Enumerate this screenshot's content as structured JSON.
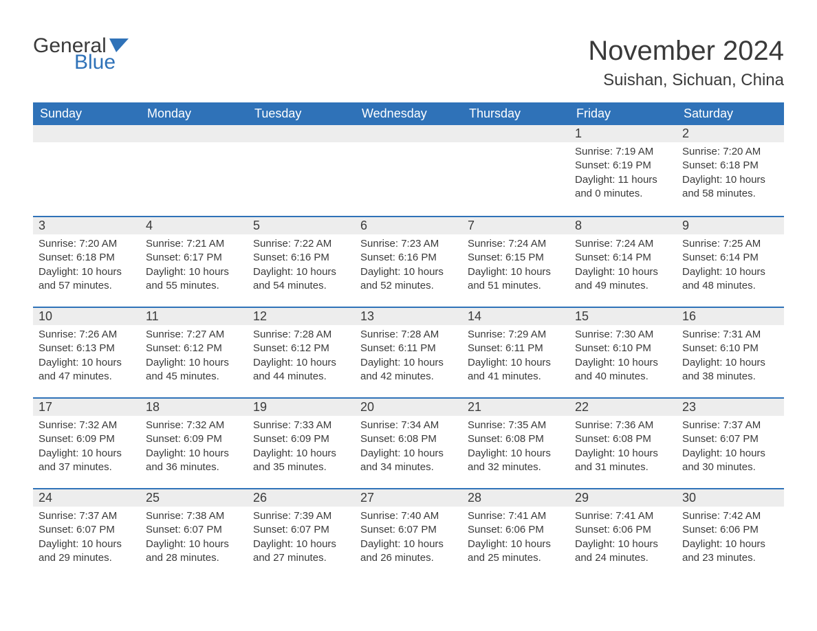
{
  "brand": {
    "word1": "General",
    "word2": "Blue"
  },
  "title": "November 2024",
  "location": "Suishan, Sichuan, China",
  "colors": {
    "header_bg": "#2f72b8",
    "header_text": "#ffffff",
    "daynum_bg": "#ededed",
    "rule": "#2f72b8",
    "body_text": "#3a3a3a",
    "page_bg": "#ffffff"
  },
  "weekdays": [
    "Sunday",
    "Monday",
    "Tuesday",
    "Wednesday",
    "Thursday",
    "Friday",
    "Saturday"
  ],
  "weeks": [
    [
      null,
      null,
      null,
      null,
      null,
      {
        "n": "1",
        "sr": "7:19 AM",
        "ss": "6:19 PM",
        "dl": "11 hours and 0 minutes."
      },
      {
        "n": "2",
        "sr": "7:20 AM",
        "ss": "6:18 PM",
        "dl": "10 hours and 58 minutes."
      }
    ],
    [
      {
        "n": "3",
        "sr": "7:20 AM",
        "ss": "6:18 PM",
        "dl": "10 hours and 57 minutes."
      },
      {
        "n": "4",
        "sr": "7:21 AM",
        "ss": "6:17 PM",
        "dl": "10 hours and 55 minutes."
      },
      {
        "n": "5",
        "sr": "7:22 AM",
        "ss": "6:16 PM",
        "dl": "10 hours and 54 minutes."
      },
      {
        "n": "6",
        "sr": "7:23 AM",
        "ss": "6:16 PM",
        "dl": "10 hours and 52 minutes."
      },
      {
        "n": "7",
        "sr": "7:24 AM",
        "ss": "6:15 PM",
        "dl": "10 hours and 51 minutes."
      },
      {
        "n": "8",
        "sr": "7:24 AM",
        "ss": "6:14 PM",
        "dl": "10 hours and 49 minutes."
      },
      {
        "n": "9",
        "sr": "7:25 AM",
        "ss": "6:14 PM",
        "dl": "10 hours and 48 minutes."
      }
    ],
    [
      {
        "n": "10",
        "sr": "7:26 AM",
        "ss": "6:13 PM",
        "dl": "10 hours and 47 minutes."
      },
      {
        "n": "11",
        "sr": "7:27 AM",
        "ss": "6:12 PM",
        "dl": "10 hours and 45 minutes."
      },
      {
        "n": "12",
        "sr": "7:28 AM",
        "ss": "6:12 PM",
        "dl": "10 hours and 44 minutes."
      },
      {
        "n": "13",
        "sr": "7:28 AM",
        "ss": "6:11 PM",
        "dl": "10 hours and 42 minutes."
      },
      {
        "n": "14",
        "sr": "7:29 AM",
        "ss": "6:11 PM",
        "dl": "10 hours and 41 minutes."
      },
      {
        "n": "15",
        "sr": "7:30 AM",
        "ss": "6:10 PM",
        "dl": "10 hours and 40 minutes."
      },
      {
        "n": "16",
        "sr": "7:31 AM",
        "ss": "6:10 PM",
        "dl": "10 hours and 38 minutes."
      }
    ],
    [
      {
        "n": "17",
        "sr": "7:32 AM",
        "ss": "6:09 PM",
        "dl": "10 hours and 37 minutes."
      },
      {
        "n": "18",
        "sr": "7:32 AM",
        "ss": "6:09 PM",
        "dl": "10 hours and 36 minutes."
      },
      {
        "n": "19",
        "sr": "7:33 AM",
        "ss": "6:09 PM",
        "dl": "10 hours and 35 minutes."
      },
      {
        "n": "20",
        "sr": "7:34 AM",
        "ss": "6:08 PM",
        "dl": "10 hours and 34 minutes."
      },
      {
        "n": "21",
        "sr": "7:35 AM",
        "ss": "6:08 PM",
        "dl": "10 hours and 32 minutes."
      },
      {
        "n": "22",
        "sr": "7:36 AM",
        "ss": "6:08 PM",
        "dl": "10 hours and 31 minutes."
      },
      {
        "n": "23",
        "sr": "7:37 AM",
        "ss": "6:07 PM",
        "dl": "10 hours and 30 minutes."
      }
    ],
    [
      {
        "n": "24",
        "sr": "7:37 AM",
        "ss": "6:07 PM",
        "dl": "10 hours and 29 minutes."
      },
      {
        "n": "25",
        "sr": "7:38 AM",
        "ss": "6:07 PM",
        "dl": "10 hours and 28 minutes."
      },
      {
        "n": "26",
        "sr": "7:39 AM",
        "ss": "6:07 PM",
        "dl": "10 hours and 27 minutes."
      },
      {
        "n": "27",
        "sr": "7:40 AM",
        "ss": "6:07 PM",
        "dl": "10 hours and 26 minutes."
      },
      {
        "n": "28",
        "sr": "7:41 AM",
        "ss": "6:06 PM",
        "dl": "10 hours and 25 minutes."
      },
      {
        "n": "29",
        "sr": "7:41 AM",
        "ss": "6:06 PM",
        "dl": "10 hours and 24 minutes."
      },
      {
        "n": "30",
        "sr": "7:42 AM",
        "ss": "6:06 PM",
        "dl": "10 hours and 23 minutes."
      }
    ]
  ],
  "labels": {
    "sunrise": "Sunrise: ",
    "sunset": "Sunset: ",
    "daylight": "Daylight: "
  }
}
